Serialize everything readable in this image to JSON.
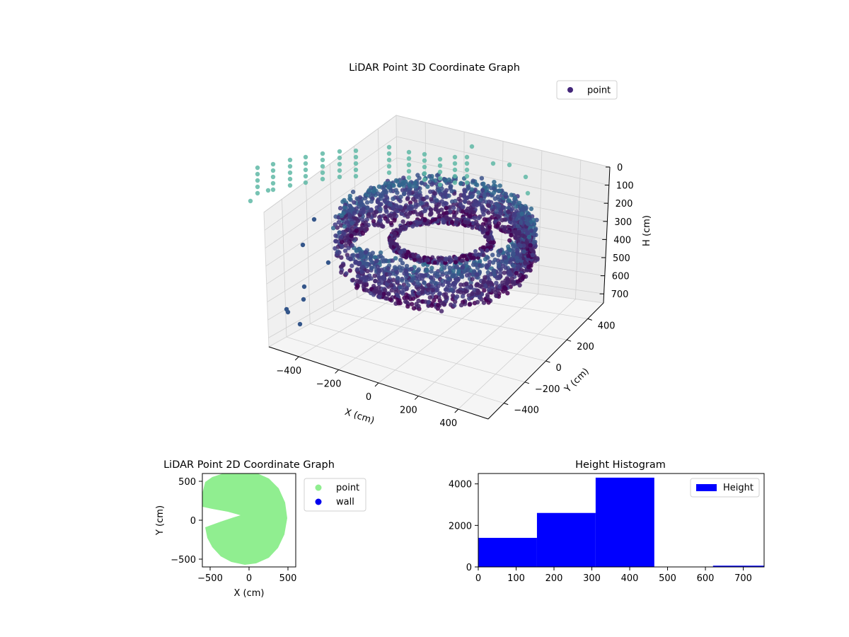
{
  "colors": {
    "point3d": "#44277a",
    "point2d": "#90ee90",
    "wall": "#0000ee",
    "histogram": "#0000ff",
    "teal": "#5fb8a6",
    "pane": "#f2f2f2",
    "grid": "#cccccc"
  },
  "chart_data": [
    {
      "type": "scatter",
      "title": "LiDAR Point 3D Coordinate Graph",
      "xlabel": "X (cm)",
      "ylabel": "Y (cm)",
      "zlabel": "H (cm)",
      "x_ticks": [
        "−400",
        "−200",
        "0",
        "200",
        "400"
      ],
      "y_ticks": [
        "−400",
        "−200",
        "0",
        "200",
        "400"
      ],
      "z_ticks": [
        "0",
        "100",
        "200",
        "300",
        "400",
        "500",
        "600",
        "700"
      ],
      "xlim": [
        -550,
        550
      ],
      "ylim": [
        -550,
        550
      ],
      "zlim": [
        0,
        750
      ],
      "z_inverted": true,
      "legend": {
        "placement": "top-right",
        "entries": [
          {
            "label": "point",
            "color": "#44277a"
          }
        ]
      },
      "colormap": "viridis"
    },
    {
      "type": "scatter",
      "title": "LiDAR Point 2D Coordinate Graph",
      "xlabel": "X (cm)",
      "ylabel": "Y (cm)",
      "x_ticks": [
        "−500",
        "0",
        "500"
      ],
      "y_ticks": [
        "500",
        "0",
        "−500"
      ],
      "xlim": [
        -600,
        600
      ],
      "ylim": [
        -600,
        600
      ],
      "series": [
        {
          "name": "point",
          "color": "#90ee90"
        },
        {
          "name": "wall",
          "color": "#0000ee"
        }
      ],
      "legend": {
        "placement": "outside-right"
      }
    },
    {
      "type": "bar",
      "title": "Height Histogram",
      "x_ticks": [
        "0",
        "100",
        "200",
        "300",
        "400",
        "500",
        "600",
        "700"
      ],
      "y_ticks": [
        "0",
        "2000",
        "4000"
      ],
      "xlim": [
        0,
        755
      ],
      "ylim": [
        0,
        4500
      ],
      "bins": [
        {
          "start": 0,
          "end": 155,
          "value": 1400
        },
        {
          "start": 155,
          "end": 310,
          "value": 2600
        },
        {
          "start": 310,
          "end": 465,
          "value": 4300
        },
        {
          "start": 465,
          "end": 620,
          "value": 0
        },
        {
          "start": 620,
          "end": 755,
          "value": 60
        }
      ],
      "series": [
        {
          "name": "Height",
          "color": "#0000ff"
        }
      ],
      "legend": {
        "placement": "top-right"
      }
    }
  ]
}
